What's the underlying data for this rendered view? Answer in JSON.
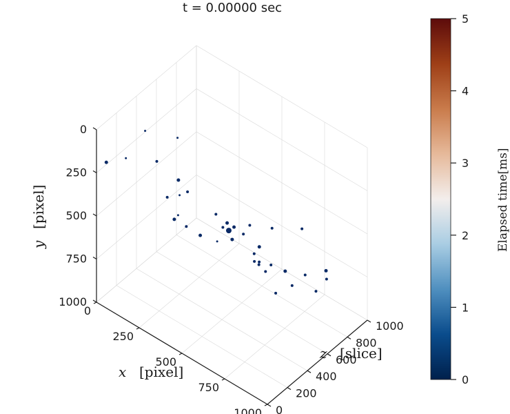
{
  "chart_data": {
    "type": "scatter",
    "dimensions": "3d",
    "title": "t = 0.00000 sec",
    "x_axis": {
      "label_var": "x",
      "label_unit": "[pixel]",
      "range": [
        0,
        1000
      ],
      "ticks": [
        0,
        250,
        500,
        750,
        1000
      ],
      "tick_labels": [
        "0",
        "250",
        "500",
        "750",
        "1000"
      ]
    },
    "y_axis": {
      "label_var": "y",
      "label_unit": "[pixel]",
      "range": [
        0,
        1000
      ],
      "ticks": [
        0,
        250,
        500,
        750,
        1000
      ],
      "tick_labels": [
        "0",
        "250",
        "500",
        "750",
        "1000"
      ]
    },
    "z_axis": {
      "label_var": "z",
      "label_unit": "[slice]",
      "range": [
        0,
        1000
      ],
      "ticks": [
        0,
        200,
        400,
        600,
        800,
        1000
      ],
      "tick_labels": [
        "0",
        "200",
        "400",
        "600",
        "800",
        "1000"
      ]
    },
    "colorbar": {
      "label": "Elapsed time[ms]",
      "range": [
        0,
        5
      ],
      "ticks": [
        0,
        1,
        2,
        3,
        4,
        5
      ],
      "tick_labels": [
        "0",
        "1",
        "2",
        "3",
        "4",
        "5"
      ],
      "colormap": [
        "#00204c",
        "#0a4c8c",
        "#4f8fbf",
        "#a9cde3",
        "#f3eeec",
        "#e6b99a",
        "#c97b4b",
        "#9e3f17",
        "#5c0b0b"
      ]
    },
    "point_color": "#0a2a66",
    "grid": true,
    "points": [
      {
        "x": 40,
        "y": 180,
        "z": 30,
        "size": 2.5
      },
      {
        "x": 20,
        "y": 280,
        "z": 260,
        "size": 1.5
      },
      {
        "x": 150,
        "y": 30,
        "z": 230,
        "size": 1.5
      },
      {
        "x": 230,
        "y": 150,
        "z": 210,
        "size": 2
      },
      {
        "x": 340,
        "y": 300,
        "z": 250,
        "size": 1.5
      },
      {
        "x": 380,
        "y": 150,
        "z": 170,
        "size": 2.5
      },
      {
        "x": 350,
        "y": 400,
        "z": 180,
        "size": 2.5
      },
      {
        "x": 480,
        "y": 120,
        "z": 90,
        "size": 2
      },
      {
        "x": 500,
        "y": 360,
        "z": 340,
        "size": 2
      },
      {
        "x": 600,
        "y": 380,
        "z": 350,
        "size": 2.5
      },
      {
        "x": 640,
        "y": 270,
        "z": 170,
        "size": 2
      },
      {
        "x": 700,
        "y": 180,
        "z": 110,
        "size": 2.5
      },
      {
        "x": 800,
        "y": 420,
        "z": 260,
        "size": 2
      },
      {
        "x": 850,
        "y": 90,
        "z": 80,
        "size": 2
      },
      {
        "x": 880,
        "y": 320,
        "z": 120,
        "size": 2
      },
      {
        "x": 900,
        "y": 190,
        "z": 90,
        "size": 2.5
      },
      {
        "x": 840,
        "y": 230,
        "z": 320,
        "size": 2
      },
      {
        "x": 180,
        "y": 480,
        "z": 400,
        "size": 2
      },
      {
        "x": 280,
        "y": 600,
        "z": 420,
        "size": 2
      },
      {
        "x": 420,
        "y": 520,
        "z": 320,
        "size": 2.5
      },
      {
        "x": 560,
        "y": 500,
        "z": 400,
        "size": 2.5
      },
      {
        "x": 760,
        "y": 450,
        "z": 280,
        "size": 2
      },
      {
        "x": 920,
        "y": 510,
        "z": 220,
        "size": 2
      },
      {
        "x": 980,
        "y": 180,
        "z": 380,
        "size": 2
      },
      {
        "x": 150,
        "y": 680,
        "z": 560,
        "size": 1.5
      },
      {
        "x": 470,
        "y": 560,
        "z": 520,
        "size": 4
      },
      {
        "x": 720,
        "y": 620,
        "z": 460,
        "size": 2
      },
      {
        "x": 800,
        "y": 600,
        "z": 520,
        "size": 2.5
      },
      {
        "x": 560,
        "y": 690,
        "z": 620,
        "size": 2
      },
      {
        "x": 870,
        "y": 620,
        "z": 600,
        "size": 2
      },
      {
        "x": 980,
        "y": 610,
        "z": 520,
        "size": 2
      },
      {
        "x": 380,
        "y": 780,
        "z": 820,
        "size": 2
      },
      {
        "x": 600,
        "y": 780,
        "z": 720,
        "size": 2
      },
      {
        "x": 840,
        "y": 740,
        "z": 860,
        "size": 2.5
      },
      {
        "x": 820,
        "y": 820,
        "z": 900,
        "size": 2
      },
      {
        "x": 700,
        "y": 860,
        "z": 760,
        "size": 2
      },
      {
        "x": 250,
        "y": 880,
        "z": 780,
        "size": 1.5
      },
      {
        "x": 100,
        "y": 300,
        "z": 640,
        "size": 1.5
      }
    ]
  }
}
